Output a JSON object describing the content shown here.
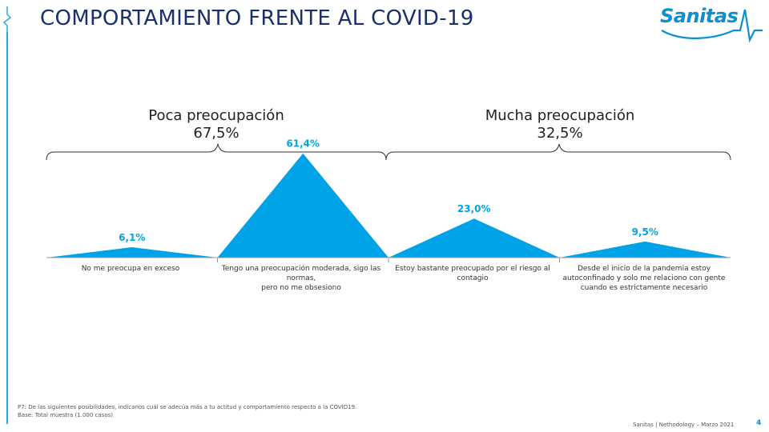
{
  "header": {
    "title": "COMPORTAMIENTO FRENTE AL COVID-19",
    "logo_text": "Sanitas"
  },
  "groups": [
    {
      "name": "Poca preocupación",
      "value": "67,5%"
    },
    {
      "name": "Mucha preocupación",
      "value": "32,5%"
    }
  ],
  "chart_data": {
    "type": "area",
    "categories": [
      "No me preocupa en exceso",
      "Tengo una preocupación moderada, sigo las normas,\npero no me obsesiono",
      "Estoy bastante preocupado por el riesgo al contagio",
      "Desde el inicio de la pandemia estoy autoconfinado y solo me relaciono con gente cuando es estrictamente necesario"
    ],
    "values": [
      6.1,
      61.4,
      23.0,
      9.5
    ],
    "data_labels": [
      "6,1%",
      "61,4%",
      "23,0%",
      "9,5%"
    ],
    "ylim": [
      0,
      70
    ],
    "color": "#00a3e8"
  },
  "footer": {
    "note_line1": "P7: De las siguientes posibilidades, indícanos cuál se adecúa más a tu actitud y comportamiento respecto a la COVID19.",
    "note_line2": "Base: Total muestra (1.000 casos)",
    "source": "Sanitas | Nethodology – Marzo 2021",
    "page": "4"
  }
}
